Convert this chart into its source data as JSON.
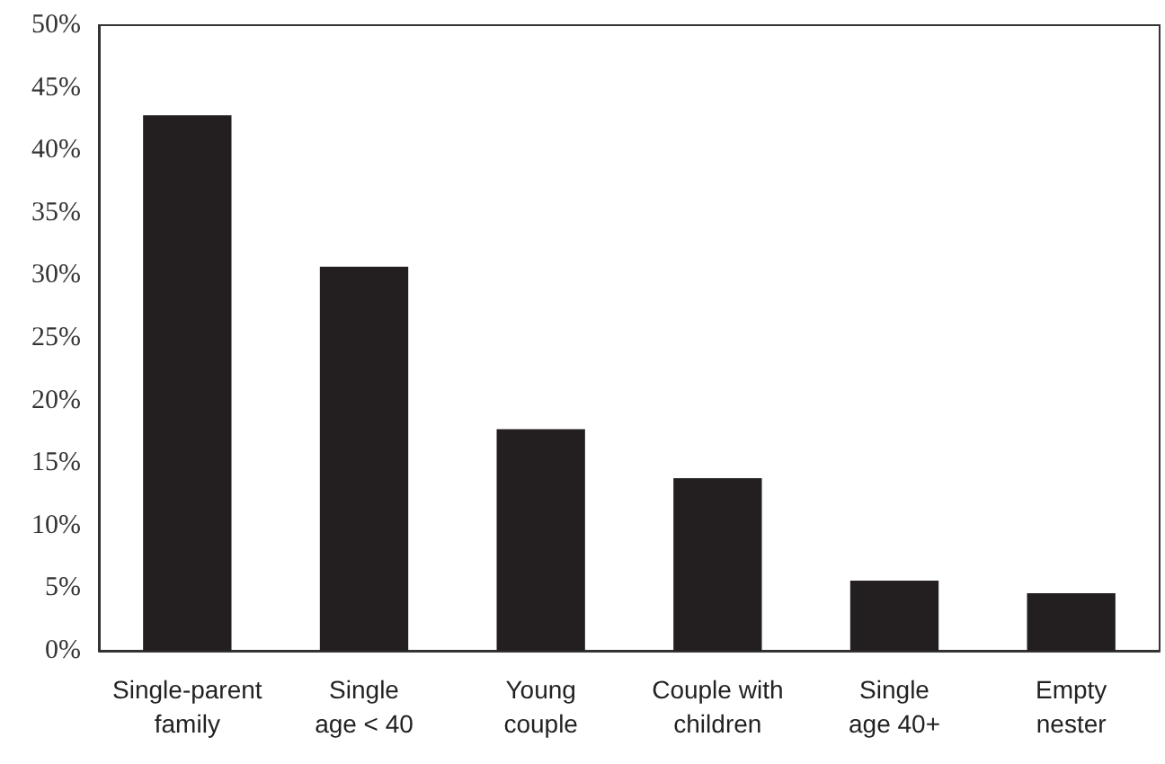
{
  "chart_data": {
    "type": "bar",
    "categories": [
      "Single-parent\nfamily",
      "Single\nage < 40",
      "Young\ncouple",
      "Couple with\nchildren",
      "Single\nage 40+",
      "Empty\nnester"
    ],
    "values": [
      42.8,
      30.7,
      17.7,
      13.8,
      5.6,
      4.6
    ],
    "color": "#231f20",
    "ylim": [
      0,
      50
    ],
    "yticks": [
      {
        "value": 0,
        "label": "0%"
      },
      {
        "value": 5,
        "label": "5%"
      },
      {
        "value": 10,
        "label": "10%"
      },
      {
        "value": 15,
        "label": "15%"
      },
      {
        "value": 20,
        "label": "20%"
      },
      {
        "value": 25,
        "label": "25%"
      },
      {
        "value": 30,
        "label": "30%"
      },
      {
        "value": 35,
        "label": "35%"
      },
      {
        "value": 40,
        "label": "40%"
      },
      {
        "value": 45,
        "label": "45%"
      },
      {
        "value": 50,
        "label": "50%"
      }
    ],
    "grid": false
  }
}
